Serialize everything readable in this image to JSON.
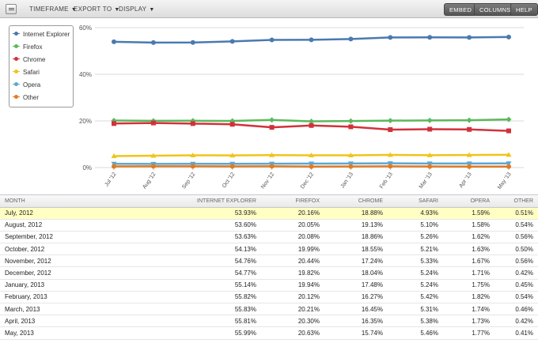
{
  "toolbar": {
    "menus": [
      {
        "label": "TIMEFRAME"
      },
      {
        "label": "EXPORT TO"
      },
      {
        "label": "DISPLAY"
      }
    ],
    "buttons": [
      {
        "label": "EMBED"
      },
      {
        "label": "COLUMNS"
      },
      {
        "label": "HELP"
      }
    ]
  },
  "chart_data": {
    "type": "line",
    "categories": [
      "Jul '12",
      "Aug '12",
      "Sep '12",
      "Oct '12",
      "Nov '12",
      "Dec '12",
      "Jan '13",
      "Feb '13",
      "Mar '13",
      "Apr '13",
      "May '13"
    ],
    "y_ticks": [
      "0%",
      "20%",
      "40%",
      "60%"
    ],
    "ylim": [
      0,
      60
    ],
    "grid": true,
    "legend_position": "top-left",
    "series": [
      {
        "name": "Internet Explorer",
        "color": "#4a7ab0",
        "marker": "circle",
        "values": [
          53.93,
          53.6,
          53.63,
          54.13,
          54.76,
          54.77,
          55.14,
          55.82,
          55.83,
          55.81,
          55.99
        ]
      },
      {
        "name": "Firefox",
        "color": "#5cb85c",
        "marker": "diamond",
        "values": [
          20.16,
          20.05,
          20.08,
          19.99,
          20.44,
          19.82,
          19.94,
          20.12,
          20.21,
          20.3,
          20.63
        ]
      },
      {
        "name": "Chrome",
        "color": "#d2313c",
        "marker": "square",
        "values": [
          18.88,
          19.13,
          18.86,
          18.55,
          17.24,
          18.04,
          17.48,
          16.27,
          16.45,
          16.35,
          15.74
        ]
      },
      {
        "name": "Safari",
        "color": "#f0c419",
        "marker": "triangle",
        "values": [
          4.93,
          5.1,
          5.26,
          5.21,
          5.33,
          5.24,
          5.24,
          5.42,
          5.31,
          5.38,
          5.46
        ]
      },
      {
        "name": "Opera",
        "color": "#5aa7d6",
        "marker": "triangle-down",
        "values": [
          1.59,
          1.58,
          1.62,
          1.63,
          1.67,
          1.71,
          1.75,
          1.82,
          1.74,
          1.73,
          1.77
        ]
      },
      {
        "name": "Other",
        "color": "#e07b22",
        "marker": "circle",
        "values": [
          0.51,
          0.54,
          0.56,
          0.5,
          0.56,
          0.42,
          0.45,
          0.54,
          0.46,
          0.42,
          0.41
        ]
      }
    ]
  },
  "table": {
    "headers": [
      "MONTH",
      "INTERNET EXPLORER",
      "FIREFOX",
      "CHROME",
      "SAFARI",
      "OPERA",
      "OTHER"
    ],
    "rows": [
      [
        "July, 2012",
        "53.93%",
        "20.16%",
        "18.88%",
        "4.93%",
        "1.59%",
        "0.51%"
      ],
      [
        "August, 2012",
        "53.60%",
        "20.05%",
        "19.13%",
        "5.10%",
        "1.58%",
        "0.54%"
      ],
      [
        "September, 2012",
        "53.63%",
        "20.08%",
        "18.86%",
        "5.26%",
        "1.62%",
        "0.56%"
      ],
      [
        "October, 2012",
        "54.13%",
        "19.99%",
        "18.55%",
        "5.21%",
        "1.63%",
        "0.50%"
      ],
      [
        "November, 2012",
        "54.76%",
        "20.44%",
        "17.24%",
        "5.33%",
        "1.67%",
        "0.56%"
      ],
      [
        "December, 2012",
        "54.77%",
        "19.82%",
        "18.04%",
        "5.24%",
        "1.71%",
        "0.42%"
      ],
      [
        "January, 2013",
        "55.14%",
        "19.94%",
        "17.48%",
        "5.24%",
        "1.75%",
        "0.45%"
      ],
      [
        "February, 2013",
        "55.82%",
        "20.12%",
        "16.27%",
        "5.42%",
        "1.82%",
        "0.54%"
      ],
      [
        "March, 2013",
        "55.83%",
        "20.21%",
        "16.45%",
        "5.31%",
        "1.74%",
        "0.46%"
      ],
      [
        "April, 2013",
        "55.81%",
        "20.30%",
        "16.35%",
        "5.38%",
        "1.73%",
        "0.42%"
      ],
      [
        "May, 2013",
        "55.99%",
        "20.63%",
        "15.74%",
        "5.46%",
        "1.77%",
        "0.41%"
      ]
    ],
    "highlight_row": 0
  }
}
